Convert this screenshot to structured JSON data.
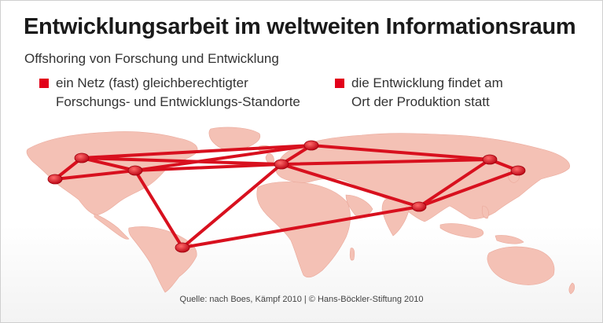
{
  "title": "Entwicklungsarbeit im weltweiten Informationsraum",
  "subtitle": "Offshoring von Forschung und Entwicklung",
  "legend": [
    {
      "text": "ein Netz (fast) gleichberechtigter\nForschungs- und Entwicklungs-Standorte"
    },
    {
      "text": "die Entwicklung findet am\nOrt der Produktion statt"
    }
  ],
  "source": "Quelle: nach Boes, Kämpf 2010 | © Hans-Böckler-Stiftung 2010",
  "colors": {
    "accent": "#e2001a",
    "land": "#f4c1b5",
    "line": "#d8101e"
  }
}
